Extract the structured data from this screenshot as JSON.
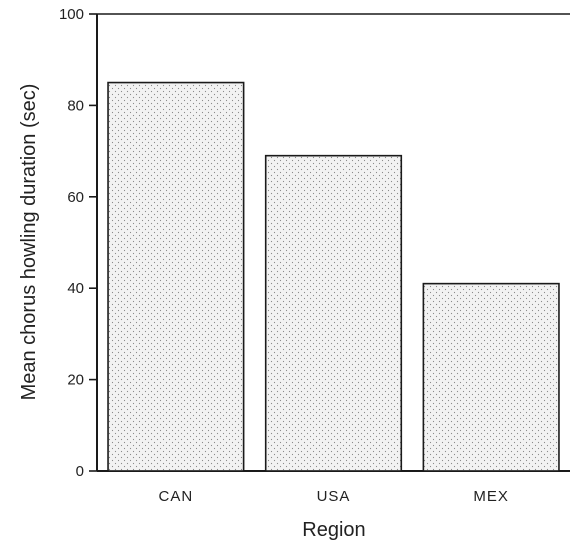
{
  "chart_data": {
    "type": "bar",
    "categories": [
      "CAN",
      "USA",
      "MEX"
    ],
    "values": [
      85,
      69,
      41
    ],
    "xlabel": "Region",
    "ylabel": "Mean chorus howling duration (sec)",
    "ylim": [
      0,
      100
    ],
    "yticks": [
      0,
      20,
      40,
      60,
      80,
      100
    ],
    "grid": false,
    "bar_fill": "#ececec",
    "bar_stroke": "#1a1a1a"
  }
}
